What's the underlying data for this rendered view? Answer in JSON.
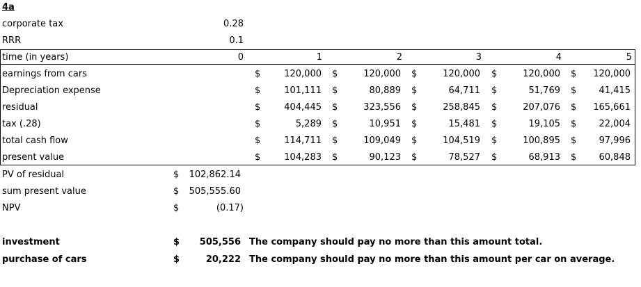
{
  "heading": "4a",
  "params": [
    {
      "label": "corporate tax",
      "value": "0.28"
    },
    {
      "label": "RRR",
      "value": "0.1"
    }
  ],
  "table": {
    "header": {
      "label": "time (in years)",
      "years": [
        "0",
        "1",
        "2",
        "3",
        "4",
        "5"
      ]
    },
    "currency": "$",
    "rows": [
      {
        "label": "earnings from cars",
        "values": [
          "120,000",
          "120,000",
          "120,000",
          "120,000",
          "120,000"
        ]
      },
      {
        "label": "Depreciation expense",
        "values": [
          "101,111",
          "80,889",
          "64,711",
          "51,769",
          "41,415"
        ]
      },
      {
        "label": "residual",
        "values": [
          "404,445",
          "323,556",
          "258,845",
          "207,076",
          "165,661"
        ]
      },
      {
        "label": "tax (.28)",
        "values": [
          "5,289",
          "10,951",
          "15,481",
          "19,105",
          "22,004"
        ]
      },
      {
        "label": "total cash flow",
        "values": [
          "114,711",
          "109,049",
          "104,519",
          "100,895",
          "97,996"
        ]
      },
      {
        "label": "present value",
        "values": [
          "104,283",
          "90,123",
          "78,527",
          "68,913",
          "60,848"
        ]
      }
    ]
  },
  "summary": [
    {
      "label": "PV of residual",
      "currency": "$",
      "value": "102,862.14"
    },
    {
      "label": "sum present value",
      "currency": "$",
      "value": "505,555.60"
    },
    {
      "label": "NPV",
      "currency": "$",
      "value": "(0.17)"
    }
  ],
  "conclusions": [
    {
      "label": "investment",
      "currency": "$",
      "value": "505,556",
      "note": "The company should pay no more than this amount total."
    },
    {
      "label": "purchase of cars",
      "currency": "$",
      "value": "20,222",
      "note": "The company should pay no more than this amount per car on average."
    }
  ]
}
